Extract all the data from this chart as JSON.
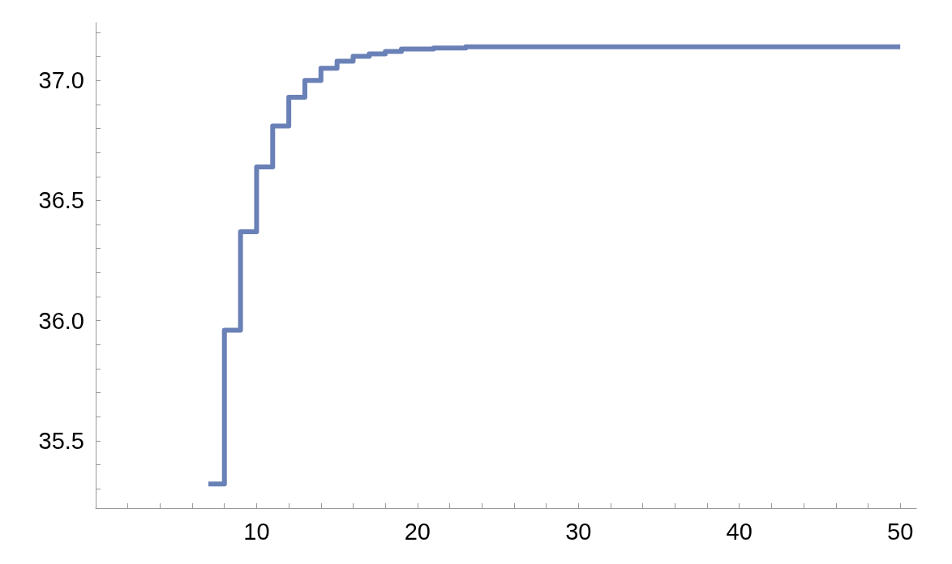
{
  "chart_data": {
    "type": "step",
    "color": "#6a81b7",
    "line_style": "solid",
    "marker": "none",
    "x": [
      7,
      8,
      9,
      10,
      11,
      12,
      13,
      14,
      15,
      16,
      17,
      18,
      19,
      20,
      21,
      22,
      23,
      24,
      25,
      26,
      27,
      28,
      29,
      30,
      32,
      34,
      36,
      38,
      40,
      42,
      44,
      46,
      48,
      50
    ],
    "values": [
      35.32,
      35.96,
      36.37,
      36.64,
      36.81,
      36.93,
      37.0,
      37.05,
      37.08,
      37.1,
      37.11,
      37.12,
      37.13,
      37.13,
      37.135,
      37.135,
      37.14,
      37.14,
      37.14,
      37.14,
      37.14,
      37.14,
      37.14,
      37.14,
      37.14,
      37.14,
      37.14,
      37.14,
      37.14,
      37.14,
      37.14,
      37.14,
      37.14,
      37.14
    ],
    "xlim": [
      0,
      51
    ],
    "xticks": [
      {
        "value": 2,
        "label": null
      },
      {
        "value": 4,
        "label": null
      },
      {
        "value": 6,
        "label": null
      },
      {
        "value": 8,
        "label": null
      },
      10,
      {
        "value": 12,
        "label": null
      },
      {
        "value": 14,
        "label": null
      },
      {
        "value": 16,
        "label": null
      },
      {
        "value": 18,
        "label": null
      },
      20,
      {
        "value": 22,
        "label": null
      },
      {
        "value": 24,
        "label": null
      },
      {
        "value": 26,
        "label": null
      },
      {
        "value": 28,
        "label": null
      },
      30,
      {
        "value": 32,
        "label": null
      },
      {
        "value": 34,
        "label": null
      },
      {
        "value": 36,
        "label": null
      },
      {
        "value": 38,
        "label": null
      },
      40,
      {
        "value": 42,
        "label": null
      },
      {
        "value": 44,
        "label": null
      },
      {
        "value": 46,
        "label": null
      },
      {
        "value": 48,
        "label": null
      },
      50
    ],
    "ylim": [
      35.22,
      37.24
    ],
    "yticks": [
      {
        "value": 35.3,
        "label": null
      },
      {
        "value": 35.4,
        "label": null
      },
      35.5,
      {
        "value": 35.6,
        "label": null
      },
      {
        "value": 35.7,
        "label": null
      },
      {
        "value": 35.8,
        "label": null
      },
      {
        "value": 35.9,
        "label": null
      },
      {
        "value": 36,
        "label": "36.0"
      },
      {
        "value": 36.1,
        "label": null
      },
      {
        "value": 36.2,
        "label": null
      },
      {
        "value": 36.3,
        "label": null
      },
      {
        "value": 36.4,
        "label": null
      },
      36.5,
      {
        "value": 36.6,
        "label": null
      },
      {
        "value": 36.7,
        "label": null
      },
      {
        "value": 36.8,
        "label": null
      },
      {
        "value": 36.9,
        "label": null
      },
      {
        "value": 37,
        "label": "37.0"
      },
      {
        "value": 37.1,
        "label": null
      },
      {
        "value": 37.2,
        "label": null
      }
    ]
  }
}
